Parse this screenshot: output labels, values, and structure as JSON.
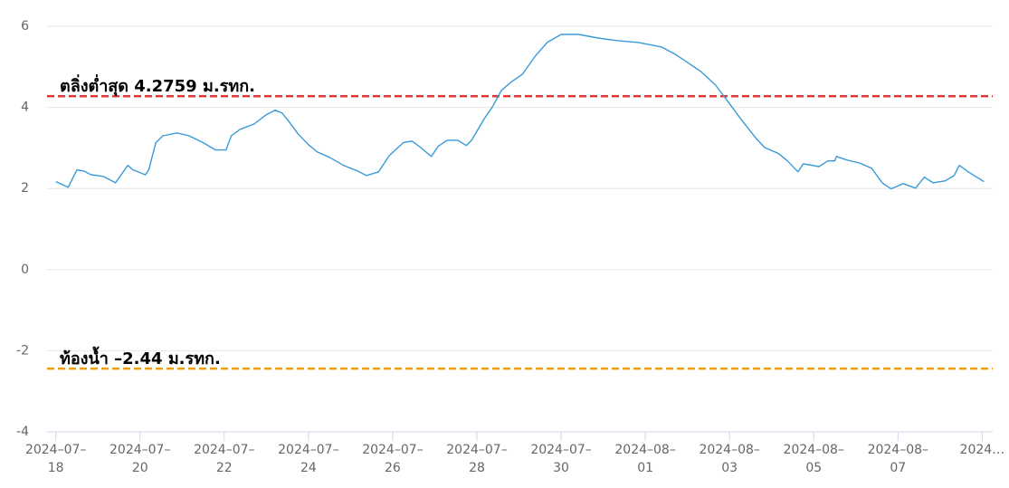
{
  "chart_data": {
    "type": "line",
    "x": [
      "2024-07-18 00:00",
      "2024-07-18 07:00",
      "2024-07-18 12:00",
      "2024-07-18 16:00",
      "2024-07-18 20:00",
      "2024-07-19 03:00",
      "2024-07-19 10:00",
      "2024-07-19 17:00",
      "2024-07-19 20:00",
      "2024-07-20 03:00",
      "2024-07-20 05:00",
      "2024-07-20 09:00",
      "2024-07-20 13:00",
      "2024-07-20 21:00",
      "2024-07-21 04:00",
      "2024-07-21 12:00",
      "2024-07-21 19:00",
      "2024-07-22 01:00",
      "2024-07-22 04:00",
      "2024-07-22 09:00",
      "2024-07-22 17:00",
      "2024-07-23 00:00",
      "2024-07-23 05:00",
      "2024-07-23 09:00",
      "2024-07-23 13:00",
      "2024-07-23 18:00",
      "2024-07-24 00:00",
      "2024-07-24 05:00",
      "2024-07-24 12:00",
      "2024-07-24 20:00",
      "2024-07-25 04:00",
      "2024-07-25 09:00",
      "2024-07-25 16:00",
      "2024-07-25 22:00",
      "2024-07-26 06:00",
      "2024-07-26 11:00",
      "2024-07-26 16:00",
      "2024-07-26 22:00",
      "2024-07-27 02:00",
      "2024-07-27 07:00",
      "2024-07-27 13:00",
      "2024-07-27 18:00",
      "2024-07-27 21:00",
      "2024-07-28 04:00",
      "2024-07-28 09:00",
      "2024-07-28 14:00",
      "2024-07-28 20:00",
      "2024-07-29 02:00",
      "2024-07-29 09:00",
      "2024-07-29 16:00",
      "2024-07-30 00:00",
      "2024-07-30 10:00",
      "2024-07-30 21:00",
      "2024-07-31 07:00",
      "2024-07-31 20:00",
      "2024-08-01 09:00",
      "2024-08-01 17:00",
      "2024-08-02 00:00",
      "2024-08-02 08:00",
      "2024-08-02 16:00",
      "2024-08-02 23:00",
      "2024-08-03 07:00",
      "2024-08-03 15:00",
      "2024-08-03 20:00",
      "2024-08-04 04:00",
      "2024-08-04 09:00",
      "2024-08-04 15:00",
      "2024-08-04 18:00",
      "2024-08-05 03:00",
      "2024-08-05 08:00",
      "2024-08-05 12:00",
      "2024-08-05 13:00",
      "2024-08-05 19:00",
      "2024-08-06 02:00",
      "2024-08-06 09:00",
      "2024-08-06 15:00",
      "2024-08-06 20:00",
      "2024-08-07 03:00",
      "2024-08-07 10:00",
      "2024-08-07 15:00",
      "2024-08-07 20:00",
      "2024-08-08 03:00",
      "2024-08-08 08:00",
      "2024-08-08 11:00",
      "2024-08-08 16:00",
      "2024-08-09 01:00"
    ],
    "series": [
      {
        "color": "#3a9ad9",
        "values": [
          2.17,
          2.03,
          2.46,
          2.43,
          2.34,
          2.3,
          2.14,
          2.57,
          2.46,
          2.34,
          2.46,
          3.13,
          3.3,
          3.37,
          3.3,
          3.13,
          2.95,
          2.95,
          3.3,
          3.46,
          3.59,
          3.82,
          3.93,
          3.86,
          3.64,
          3.35,
          3.08,
          2.9,
          2.77,
          2.57,
          2.43,
          2.32,
          2.41,
          2.81,
          3.13,
          3.17,
          3.01,
          2.79,
          3.04,
          3.19,
          3.19,
          3.06,
          3.19,
          3.71,
          4.02,
          4.42,
          4.64,
          4.82,
          5.25,
          5.6,
          5.8,
          5.8,
          5.71,
          5.65,
          5.6,
          5.49,
          5.31,
          5.11,
          4.87,
          4.55,
          4.15,
          3.68,
          3.24,
          3.01,
          2.86,
          2.68,
          2.41,
          2.61,
          2.54,
          2.68,
          2.68,
          2.79,
          2.7,
          2.63,
          2.5,
          2.14,
          1.99,
          2.12,
          2.01,
          2.28,
          2.14,
          2.19,
          2.32,
          2.57,
          2.41,
          2.17
        ]
      }
    ],
    "xlim": [
      "2024-07-17 19:00",
      "2024-08-09 06:00"
    ],
    "xticks": [
      {
        "value": "2024-07-18",
        "label": "2024–07–\n18"
      },
      {
        "value": "2024-07-20",
        "label": "2024–07–\n20"
      },
      {
        "value": "2024-07-22",
        "label": "2024–07–\n22"
      },
      {
        "value": "2024-07-24",
        "label": "2024–07–\n24"
      },
      {
        "value": "2024-07-26",
        "label": "2024–07–\n26"
      },
      {
        "value": "2024-07-28",
        "label": "2024–07–\n28"
      },
      {
        "value": "2024-07-30",
        "label": "2024–07–\n30"
      },
      {
        "value": "2024-08-01",
        "label": "2024–08–\n01"
      },
      {
        "value": "2024-08-03",
        "label": "2024–08–\n03"
      },
      {
        "value": "2024-08-05",
        "label": "2024–08–\n05"
      },
      {
        "value": "2024-08-07",
        "label": "2024–08–\n07"
      },
      {
        "value": "2024-08-09",
        "label": "2024…"
      }
    ],
    "ylim": [
      -4,
      6
    ],
    "yticks": [
      -4,
      -2,
      0,
      2,
      4,
      6
    ],
    "grid": true,
    "annotations": [
      {
        "value": 4.2759,
        "label": "ตลิ่งต่ำสุด 4.2759 ม.รทก.",
        "color": "#e53935"
      },
      {
        "value": -2.44,
        "label": "ท้องน้ำ –2.44 ม.รทก.",
        "color": "#f29f05"
      }
    ]
  }
}
